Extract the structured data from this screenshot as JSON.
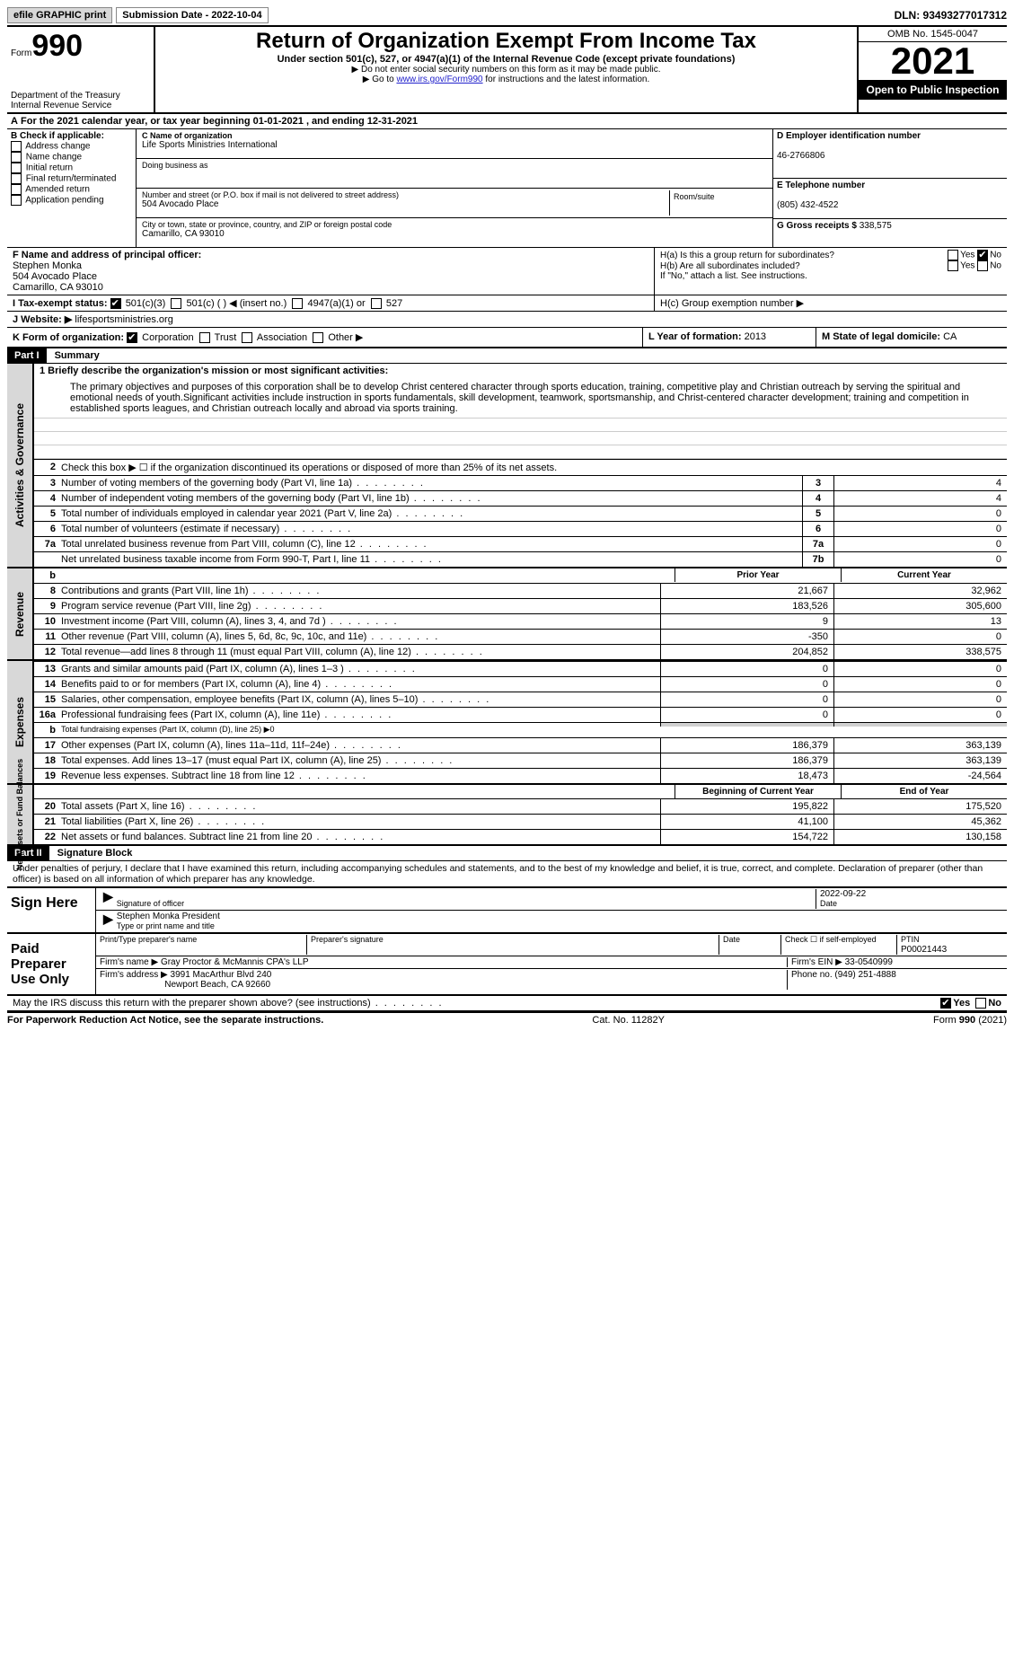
{
  "topbar": {
    "efile": "efile GRAPHIC print",
    "submission": "Submission Date - 2022-10-04",
    "dln": "DLN: 93493277017312"
  },
  "header": {
    "form_label": "Form",
    "form_number": "990",
    "title": "Return of Organization Exempt From Income Tax",
    "subtitle": "Under section 501(c), 527, or 4947(a)(1) of the Internal Revenue Code (except private foundations)",
    "note1": "▶ Do not enter social security numbers on this form as it may be made public.",
    "note2_prefix": "▶ Go to ",
    "note2_link": "www.irs.gov/Form990",
    "note2_suffix": " for instructions and the latest information.",
    "dept": "Department of the Treasury",
    "irs": "Internal Revenue Service",
    "omb": "OMB No. 1545-0047",
    "year": "2021",
    "inspect": "Open to Public Inspection"
  },
  "row_a": {
    "label": "A",
    "text": "For the 2021 calendar year, or tax year beginning 01-01-2021    , and ending 12-31-2021"
  },
  "section_b": {
    "label": "B Check if applicable:",
    "items": [
      "Address change",
      "Name change",
      "Initial return",
      "Final return/terminated",
      "Amended return",
      "Application pending"
    ]
  },
  "section_c": {
    "name_label": "C Name of organization",
    "name": "Life Sports Ministries International",
    "dba_label": "Doing business as",
    "street_label": "Number and street (or P.O. box if mail is not delivered to street address)",
    "street": "504 Avocado Place",
    "room_label": "Room/suite",
    "city_label": "City or town, state or province, country, and ZIP or foreign postal code",
    "city": "Camarillo, CA  93010"
  },
  "section_d": {
    "label": "D Employer identification number",
    "ein": "46-2766806"
  },
  "section_e": {
    "label": "E Telephone number",
    "phone": "(805) 432-4522"
  },
  "section_g": {
    "label": "G Gross receipts $",
    "amount": "338,575"
  },
  "section_f": {
    "label": "F  Name and address of principal officer:",
    "name": "Stephen Monka",
    "street": "504 Avocado Place",
    "city": "Camarillo, CA  93010"
  },
  "section_h": {
    "ha": "H(a)  Is this a group return for subordinates?",
    "hb": "H(b)  Are all subordinates included?",
    "hb_note": "If \"No,\" attach a list. See instructions.",
    "hc": "H(c)  Group exemption number ▶"
  },
  "section_i": {
    "label": "I   Tax-exempt status:",
    "opts": [
      "501(c)(3)",
      "501(c) (   ) ◀ (insert no.)",
      "4947(a)(1) or",
      "527"
    ]
  },
  "section_j": {
    "label": "J   Website: ▶",
    "value": "lifesportsministries.org"
  },
  "section_k": {
    "label": "K Form of organization:",
    "opts": [
      "Corporation",
      "Trust",
      "Association",
      "Other ▶"
    ]
  },
  "section_l": {
    "label": "L Year of formation:",
    "value": "2013"
  },
  "section_m": {
    "label": "M State of legal domicile:",
    "value": "CA"
  },
  "part1": {
    "header": "Part I",
    "title": "Summary",
    "mission_label": "1   Briefly describe the organization's mission or most significant activities:",
    "mission": "The primary objectives and purposes of this corporation shall be to develop Christ centered character through sports education, training, competitive play and Christian outreach by serving the spiritual and emotional needs of youth.Significant activities include instruction in sports fundamentals, skill development, teamwork, sportsmanship, and Christ-centered character development; training and competition in established sports leagues, and Christian outreach locally and abroad via sports training.",
    "line2": "Check this box ▶ ☐  if the organization discontinued its operations or disposed of more than 25% of its net assets.",
    "lines_3_7": [
      {
        "num": "3",
        "desc": "Number of voting members of the governing body (Part VI, line 1a)",
        "box": "3",
        "val": "4"
      },
      {
        "num": "4",
        "desc": "Number of independent voting members of the governing body (Part VI, line 1b)",
        "box": "4",
        "val": "4"
      },
      {
        "num": "5",
        "desc": "Total number of individuals employed in calendar year 2021 (Part V, line 2a)",
        "box": "5",
        "val": "0"
      },
      {
        "num": "6",
        "desc": "Total number of volunteers (estimate if necessary)",
        "box": "6",
        "val": "0"
      },
      {
        "num": "7a",
        "desc": "Total unrelated business revenue from Part VIII, column (C), line 12",
        "box": "7a",
        "val": "0"
      },
      {
        "num": "",
        "desc": "Net unrelated business taxable income from Form 990-T, Part I, line 11",
        "box": "7b",
        "val": "0"
      }
    ],
    "col_headers": {
      "prior": "Prior Year",
      "current": "Current Year",
      "beg": "Beginning of Current Year",
      "end": "End of Year"
    },
    "revenue_label": "Revenue",
    "revenue": [
      {
        "num": "8",
        "desc": "Contributions and grants (Part VIII, line 1h)",
        "prior": "21,667",
        "current": "32,962"
      },
      {
        "num": "9",
        "desc": "Program service revenue (Part VIII, line 2g)",
        "prior": "183,526",
        "current": "305,600"
      },
      {
        "num": "10",
        "desc": "Investment income (Part VIII, column (A), lines 3, 4, and 7d )",
        "prior": "9",
        "current": "13"
      },
      {
        "num": "11",
        "desc": "Other revenue (Part VIII, column (A), lines 5, 6d, 8c, 9c, 10c, and 11e)",
        "prior": "-350",
        "current": "0"
      },
      {
        "num": "12",
        "desc": "Total revenue—add lines 8 through 11 (must equal Part VIII, column (A), line 12)",
        "prior": "204,852",
        "current": "338,575"
      }
    ],
    "expenses_label": "Expenses",
    "expenses": [
      {
        "num": "13",
        "desc": "Grants and similar amounts paid (Part IX, column (A), lines 1–3 )",
        "prior": "0",
        "current": "0"
      },
      {
        "num": "14",
        "desc": "Benefits paid to or for members (Part IX, column (A), line 4)",
        "prior": "0",
        "current": "0"
      },
      {
        "num": "15",
        "desc": "Salaries, other compensation, employee benefits (Part IX, column (A), lines 5–10)",
        "prior": "0",
        "current": "0"
      },
      {
        "num": "16a",
        "desc": "Professional fundraising fees (Part IX, column (A), line 11e)",
        "prior": "0",
        "current": "0"
      },
      {
        "num": "b",
        "desc": "Total fundraising expenses (Part IX, column (D), line 25) ▶0",
        "prior": "",
        "current": "",
        "grey": true
      },
      {
        "num": "17",
        "desc": "Other expenses (Part IX, column (A), lines 11a–11d, 11f–24e)",
        "prior": "186,379",
        "current": "363,139"
      },
      {
        "num": "18",
        "desc": "Total expenses. Add lines 13–17 (must equal Part IX, column (A), line 25)",
        "prior": "186,379",
        "current": "363,139"
      },
      {
        "num": "19",
        "desc": "Revenue less expenses. Subtract line 18 from line 12",
        "prior": "18,473",
        "current": "-24,564"
      }
    ],
    "netassets_label": "Net Assets or Fund Balances",
    "netassets": [
      {
        "num": "20",
        "desc": "Total assets (Part X, line 16)",
        "prior": "195,822",
        "current": "175,520"
      },
      {
        "num": "21",
        "desc": "Total liabilities (Part X, line 26)",
        "prior": "41,100",
        "current": "45,362"
      },
      {
        "num": "22",
        "desc": "Net assets or fund balances. Subtract line 21 from line 20",
        "prior": "154,722",
        "current": "130,158"
      }
    ]
  },
  "part2": {
    "header": "Part II",
    "title": "Signature Block",
    "jurat": "Under penalties of perjury, I declare that I have examined this return, including accompanying schedules and statements, and to the best of my knowledge and belief, it is true, correct, and complete. Declaration of preparer (other than officer) is based on all information of which preparer has any knowledge.",
    "sign_here": "Sign Here",
    "sig_officer": "Signature of officer",
    "date_label": "Date",
    "sig_date": "2022-09-22",
    "name_title": "Stephen Monka  President",
    "name_title_label": "Type or print name and title",
    "paid": "Paid Preparer Use Only",
    "prep_name_label": "Print/Type preparer's name",
    "prep_sig_label": "Preparer's signature",
    "check_self": "Check ☐ if self-employed",
    "ptin_label": "PTIN",
    "ptin": "P00021443",
    "firm_name_label": "Firm's name     ▶",
    "firm_name": "Gray Proctor & McMannis CPA's LLP",
    "firm_ein_label": "Firm's EIN ▶",
    "firm_ein": "33-0540999",
    "firm_addr_label": "Firm's address ▶",
    "firm_addr1": "3991 MacArthur Blvd 240",
    "firm_addr2": "Newport Beach, CA  92660",
    "phone_label": "Phone no.",
    "phone": "(949) 251-4888",
    "discuss": "May the IRS discuss this return with the preparer shown above? (see instructions)",
    "yes": "Yes",
    "no": "No"
  },
  "footer": {
    "left": "For Paperwork Reduction Act Notice, see the separate instructions.",
    "mid": "Cat. No. 11282Y",
    "right": "Form 990 (2021)"
  }
}
